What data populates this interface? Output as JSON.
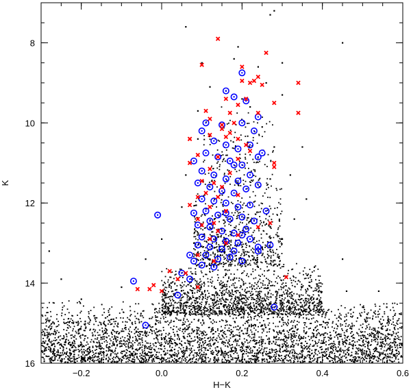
{
  "chart_data": {
    "type": "scatter",
    "title": "",
    "xlabel": "H−K",
    "ylabel": "K",
    "xlim": [
      -0.3,
      0.6
    ],
    "ylim": [
      16,
      7.0
    ],
    "y_inverted": true,
    "grid": false,
    "x_ticks": [
      {
        "value": -0.2,
        "label": "−0.2"
      },
      {
        "value": 0.0,
        "label": "0.0"
      },
      {
        "value": 0.2,
        "label": "0.2"
      },
      {
        "value": 0.4,
        "label": "0.4"
      },
      {
        "value": 0.6,
        "label": "0.6"
      }
    ],
    "y_ticks": [
      {
        "value": 8,
        "label": "8"
      },
      {
        "value": 10,
        "label": "10"
      },
      {
        "value": 12,
        "label": "12"
      },
      {
        "value": 14,
        "label": "14"
      },
      {
        "value": 16,
        "label": "16"
      }
    ],
    "series": [
      {
        "marker": "dot",
        "color": "#000000",
        "points": [
          [
            0.06,
            7.6
          ],
          [
            0.14,
            7.9
          ],
          [
            0.18,
            8.4
          ],
          [
            0.24,
            8.6
          ],
          [
            0.28,
            7.2
          ],
          [
            0.3,
            8.5
          ],
          [
            0.27,
            7.3
          ],
          [
            0.45,
            8.0
          ],
          [
            0.1,
            8.5
          ],
          [
            0.19,
            8.1
          ],
          [
            0.12,
            9.1
          ],
          [
            0.16,
            9.2
          ],
          [
            0.2,
            9.4
          ],
          [
            0.26,
            9.0
          ],
          [
            0.22,
            9.6
          ],
          [
            0.09,
            9.7
          ],
          [
            0.3,
            9.3
          ],
          [
            0.25,
            10.1
          ],
          [
            0.28,
            10.6
          ],
          [
            0.09,
            10.4
          ],
          [
            0.32,
            11.3
          ],
          [
            0.35,
            10.6
          ],
          [
            0.27,
            11.4
          ],
          [
            0.33,
            12.4
          ],
          [
            0.36,
            11.9
          ],
          [
            0.27,
            12.6
          ],
          [
            0.25,
            13.1
          ],
          [
            0.3,
            12.9
          ],
          [
            0.06,
            11.3
          ],
          [
            0.05,
            12.1
          ],
          [
            0.0,
            12.9
          ],
          [
            -0.04,
            13.4
          ],
          [
            0.08,
            13.0
          ],
          [
            0.12,
            13.4
          ],
          [
            0.2,
            13.5
          ],
          [
            0.24,
            13.6
          ],
          [
            0.28,
            13.7
          ],
          [
            0.38,
            13.6
          ],
          [
            0.36,
            14.2
          ],
          [
            0.46,
            14.2
          ],
          [
            0.5,
            14.6
          ],
          [
            0.54,
            14.2
          ],
          [
            0.56,
            14.6
          ],
          [
            0.58,
            14.8
          ],
          [
            0.45,
            13.4
          ],
          [
            -0.1,
            14.1
          ],
          [
            -0.2,
            14.4
          ],
          [
            -0.25,
            13.9
          ],
          [
            -0.28,
            13.2
          ],
          [
            -0.12,
            14.9
          ],
          [
            -0.22,
            15.0
          ],
          [
            -0.28,
            15.4
          ],
          [
            -0.25,
            15.8
          ],
          [
            -0.18,
            15.6
          ],
          [
            -0.1,
            15.2
          ],
          [
            0.0,
            15.4
          ],
          [
            0.05,
            15.7
          ],
          [
            0.1,
            15.9
          ],
          [
            0.2,
            15.5
          ],
          [
            0.3,
            15.6
          ],
          [
            0.4,
            15.5
          ],
          [
            0.5,
            15.3
          ],
          [
            0.58,
            15.4
          ],
          [
            0.48,
            15.9
          ],
          [
            0.35,
            15.8
          ],
          [
            0.25,
            15.9
          ],
          [
            0.15,
            15.7
          ],
          [
            -0.05,
            15.8
          ],
          [
            -0.15,
            15.9
          ],
          [
            -0.27,
            15.7
          ]
        ]
      },
      {
        "name": "",
        "marker": "circle",
        "color": "#0000ff",
        "points": [
          [
            0.2,
            8.75
          ],
          [
            0.16,
            9.2
          ],
          [
            0.18,
            9.35
          ],
          [
            0.21,
            9.45
          ],
          [
            0.24,
            9.85
          ],
          [
            0.11,
            10.0
          ],
          [
            0.15,
            10.05
          ],
          [
            0.2,
            10.0
          ],
          [
            0.23,
            10.2
          ],
          [
            0.1,
            10.2
          ],
          [
            0.13,
            10.45
          ],
          [
            0.16,
            10.55
          ],
          [
            0.19,
            10.65
          ],
          [
            0.22,
            10.55
          ],
          [
            0.25,
            10.75
          ],
          [
            0.11,
            10.75
          ],
          [
            0.14,
            10.85
          ],
          [
            0.17,
            10.95
          ],
          [
            0.2,
            11.05
          ],
          [
            0.24,
            10.85
          ],
          [
            0.08,
            10.95
          ],
          [
            0.1,
            11.2
          ],
          [
            0.13,
            11.3
          ],
          [
            0.16,
            11.4
          ],
          [
            0.19,
            11.45
          ],
          [
            0.22,
            11.3
          ],
          [
            0.09,
            11.5
          ],
          [
            0.12,
            11.6
          ],
          [
            0.15,
            11.7
          ],
          [
            0.18,
            11.75
          ],
          [
            0.21,
            11.65
          ],
          [
            0.24,
            11.55
          ],
          [
            0.1,
            11.9
          ],
          [
            0.13,
            11.95
          ],
          [
            0.16,
            12.0
          ],
          [
            0.19,
            12.1
          ],
          [
            0.22,
            12.05
          ],
          [
            0.08,
            12.25
          ],
          [
            0.11,
            12.2
          ],
          [
            0.14,
            12.3
          ],
          [
            0.17,
            12.4
          ],
          [
            0.2,
            12.35
          ],
          [
            0.23,
            12.45
          ],
          [
            0.09,
            12.55
          ],
          [
            0.12,
            12.6
          ],
          [
            0.15,
            12.7
          ],
          [
            0.18,
            12.75
          ],
          [
            0.21,
            12.65
          ],
          [
            0.1,
            12.85
          ],
          [
            0.13,
            12.9
          ],
          [
            0.16,
            12.95
          ],
          [
            0.19,
            13.0
          ],
          [
            0.22,
            12.9
          ],
          [
            0.09,
            13.05
          ],
          [
            0.12,
            13.1
          ],
          [
            0.15,
            13.15
          ],
          [
            0.18,
            13.2
          ],
          [
            0.24,
            13.1
          ],
          [
            0.11,
            13.3
          ],
          [
            0.14,
            13.4
          ],
          [
            0.17,
            13.35
          ],
          [
            0.2,
            13.45
          ],
          [
            0.1,
            13.55
          ],
          [
            0.13,
            13.6
          ],
          [
            0.27,
            13.05
          ],
          [
            0.24,
            13.2
          ],
          [
            0.07,
            13.3
          ],
          [
            0.08,
            13.45
          ],
          [
            -0.07,
            13.95
          ],
          [
            -0.01,
            12.3
          ],
          [
            0.05,
            13.75
          ],
          [
            0.07,
            13.9
          ],
          [
            0.04,
            14.3
          ],
          [
            0.28,
            14.6
          ],
          [
            -0.04,
            15.05
          ],
          [
            0.18,
            11.05
          ],
          [
            0.2,
            12.8
          ],
          [
            0.26,
            12.2
          ],
          [
            0.12,
            12.45
          ],
          [
            0.16,
            12.25
          ]
        ]
      },
      {
        "name": "",
        "marker": "cross",
        "color": "#ff0000",
        "points": [
          [
            0.14,
            7.9
          ],
          [
            0.26,
            8.25
          ],
          [
            0.1,
            8.55
          ],
          [
            0.2,
            8.6
          ],
          [
            0.24,
            8.85
          ],
          [
            0.2,
            8.95
          ],
          [
            0.22,
            9.0
          ],
          [
            0.23,
            8.95
          ],
          [
            0.25,
            9.05
          ],
          [
            0.34,
            9.0
          ],
          [
            0.16,
            9.4
          ],
          [
            0.21,
            9.4
          ],
          [
            0.19,
            9.55
          ],
          [
            0.28,
            9.5
          ],
          [
            0.11,
            9.7
          ],
          [
            0.17,
            9.75
          ],
          [
            0.24,
            9.75
          ],
          [
            0.34,
            9.75
          ],
          [
            0.12,
            9.9
          ],
          [
            0.18,
            10.0
          ],
          [
            0.15,
            10.05
          ],
          [
            0.15,
            10.15
          ],
          [
            0.17,
            10.25
          ],
          [
            0.16,
            10.35
          ],
          [
            0.19,
            10.4
          ],
          [
            0.12,
            10.3
          ],
          [
            0.07,
            10.4
          ],
          [
            0.21,
            10.55
          ],
          [
            0.22,
            10.7
          ],
          [
            0.09,
            10.8
          ],
          [
            0.14,
            10.85
          ],
          [
            0.19,
            10.9
          ],
          [
            0.28,
            11.0
          ],
          [
            0.07,
            11.0
          ],
          [
            0.12,
            11.15
          ],
          [
            0.17,
            11.25
          ],
          [
            0.1,
            11.45
          ],
          [
            0.13,
            11.5
          ],
          [
            0.15,
            11.6
          ],
          [
            0.11,
            11.75
          ],
          [
            0.14,
            11.85
          ],
          [
            0.19,
            11.8
          ],
          [
            0.09,
            11.85
          ],
          [
            0.07,
            12.05
          ],
          [
            0.12,
            12.1
          ],
          [
            0.16,
            12.2
          ],
          [
            0.09,
            12.4
          ],
          [
            0.13,
            12.5
          ],
          [
            0.1,
            12.55
          ],
          [
            0.14,
            12.7
          ],
          [
            0.19,
            12.8
          ],
          [
            0.24,
            12.6
          ],
          [
            0.12,
            12.9
          ],
          [
            0.16,
            13.0
          ],
          [
            0.09,
            13.3
          ],
          [
            0.13,
            13.45
          ],
          [
            0.02,
            13.7
          ],
          [
            0.04,
            13.9
          ],
          [
            0.06,
            13.75
          ],
          [
            -0.02,
            14.05
          ],
          [
            -0.03,
            14.15
          ],
          [
            0.0,
            14.2
          ],
          [
            -0.06,
            14.15
          ],
          [
            0.09,
            14.1
          ],
          [
            0.31,
            13.85
          ],
          [
            0.27,
            12.5
          ],
          [
            0.28,
            11.1
          ],
          [
            0.07,
            10.4
          ]
        ]
      }
    ],
    "background_cloud": {
      "description_of_density": "dense field population",
      "bands": [
        {
          "x_range": [
            -0.3,
            0.6
          ],
          "y_range": [
            14.4,
            16.0
          ],
          "count": 3600
        },
        {
          "x_range": [
            0.0,
            0.4
          ],
          "y_range": [
            13.5,
            14.8
          ],
          "count": 1500
        },
        {
          "x_range": [
            0.08,
            0.3
          ],
          "y_range": [
            11.5,
            13.6
          ],
          "count": 700
        },
        {
          "x_range": [
            0.1,
            0.28
          ],
          "y_range": [
            9.5,
            11.6
          ],
          "count": 180
        }
      ]
    }
  }
}
